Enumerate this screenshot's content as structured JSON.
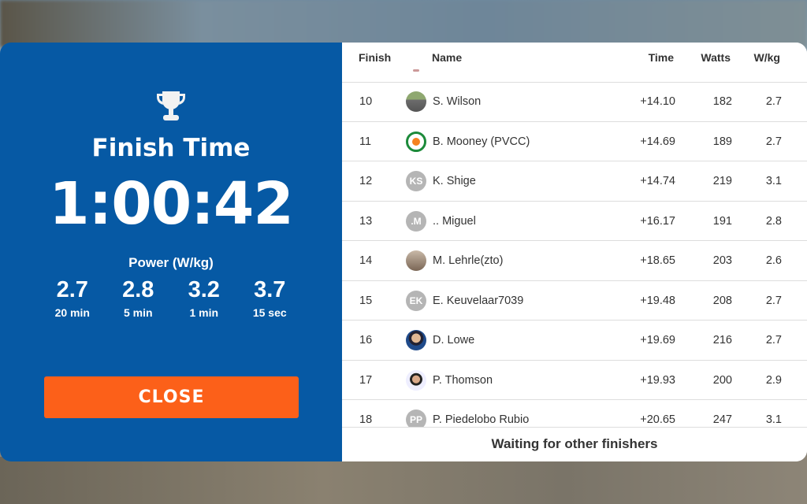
{
  "finish": {
    "icon": "trophy-icon",
    "title": "Finish Time",
    "time": "1:00:42",
    "power_title": "Power (W/kg)",
    "power": [
      {
        "value": "2.7",
        "label": "20 min"
      },
      {
        "value": "2.8",
        "label": "5 min"
      },
      {
        "value": "3.2",
        "label": "1 min"
      },
      {
        "value": "3.7",
        "label": "15 sec"
      }
    ],
    "close_label": "CLOSE"
  },
  "table": {
    "headers": {
      "finish": "Finish",
      "name": "Name",
      "time": "Time",
      "watts": "Watts",
      "wkg": "W/kg"
    },
    "rows": [
      {
        "pos": "10",
        "name": "S. Wilson",
        "time": "+14.10",
        "watts": "182",
        "wkg": "2.7",
        "avatar": "photo",
        "initials": ""
      },
      {
        "pos": "11",
        "name": "B. Mooney (PVCC)",
        "time": "+14.69",
        "watts": "189",
        "wkg": "2.7",
        "avatar": "ring",
        "initials": ""
      },
      {
        "pos": "12",
        "name": "K. Shige",
        "time": "+14.74",
        "watts": "219",
        "wkg": "3.1",
        "avatar": "initials",
        "initials": "KS"
      },
      {
        "pos": "13",
        "name": ".. Miguel",
        "time": "+16.17",
        "watts": "191",
        "wkg": "2.8",
        "avatar": "initials",
        "initials": ".M"
      },
      {
        "pos": "14",
        "name": "M. Lehrle(zto)",
        "time": "+18.65",
        "watts": "203",
        "wkg": "2.6",
        "avatar": "photo2",
        "initials": ""
      },
      {
        "pos": "15",
        "name": "E. Keuvelaar7039",
        "time": "+19.48",
        "watts": "208",
        "wkg": "2.7",
        "avatar": "initials",
        "initials": "EK"
      },
      {
        "pos": "16",
        "name": "D. Lowe",
        "time": "+19.69",
        "watts": "216",
        "wkg": "2.7",
        "avatar": "photo3",
        "initials": ""
      },
      {
        "pos": "17",
        "name": "P. Thomson",
        "time": "+19.93",
        "watts": "200",
        "wkg": "2.9",
        "avatar": "photo4",
        "initials": ""
      },
      {
        "pos": "18",
        "name": "P. Piedelobo Rubio",
        "time": "+20.65",
        "watts": "247",
        "wkg": "3.1",
        "avatar": "initials",
        "initials": "PP"
      }
    ],
    "footer": "Waiting for other finishers"
  },
  "colors": {
    "panel_blue": "#0659a4",
    "close_orange": "#fc6019"
  }
}
